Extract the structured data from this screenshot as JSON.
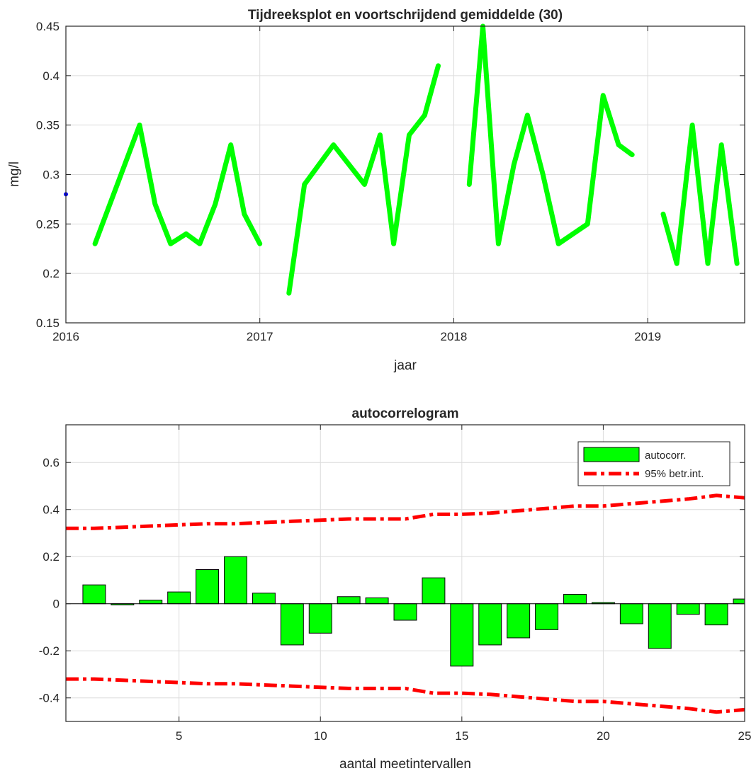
{
  "chart_data": [
    {
      "type": "line",
      "title": "Tijdreeksplot en voortschrijdend gemiddelde (30)",
      "xlabel": "jaar",
      "ylabel": "mg/l",
      "xticks": [
        "2016",
        "2017",
        "2018",
        "2019"
      ],
      "yticks": [
        "0.15",
        "0.2",
        "0.25",
        "0.3",
        "0.35",
        "0.4",
        "0.45"
      ],
      "xlim": [
        2016.0,
        2019.5
      ],
      "ylim": [
        0.15,
        0.45
      ],
      "grid": true,
      "colors": {
        "line": "#00ff00",
        "points": "#0000ff"
      },
      "series": [
        {
          "segments": [
            [
              [
                2016.0,
                0.28
              ]
            ],
            [
              [
                2016.15,
                0.23
              ],
              [
                2016.38,
                0.35
              ],
              [
                2016.46,
                0.27
              ],
              [
                2016.54,
                0.23
              ],
              [
                2016.62,
                0.24
              ],
              [
                2016.69,
                0.23
              ],
              [
                2016.77,
                0.27
              ],
              [
                2016.85,
                0.33
              ],
              [
                2016.92,
                0.26
              ],
              [
                2017.0,
                0.23
              ]
            ],
            [
              [
                2017.15,
                0.18
              ],
              [
                2017.23,
                0.29
              ],
              [
                2017.38,
                0.33
              ],
              [
                2017.54,
                0.29
              ],
              [
                2017.62,
                0.34
              ],
              [
                2017.69,
                0.23
              ],
              [
                2017.77,
                0.34
              ],
              [
                2017.85,
                0.36
              ],
              [
                2017.92,
                0.41
              ]
            ],
            [
              [
                2018.08,
                0.29
              ],
              [
                2018.15,
                0.45
              ],
              [
                2018.23,
                0.23
              ],
              [
                2018.31,
                0.31
              ],
              [
                2018.38,
                0.36
              ],
              [
                2018.46,
                0.3
              ],
              [
                2018.54,
                0.23
              ],
              [
                2018.69,
                0.25
              ],
              [
                2018.77,
                0.38
              ],
              [
                2018.85,
                0.33
              ],
              [
                2018.92,
                0.32
              ]
            ],
            [
              [
                2019.08,
                0.26
              ],
              [
                2019.15,
                0.21
              ],
              [
                2019.23,
                0.35
              ],
              [
                2019.31,
                0.21
              ],
              [
                2019.38,
                0.33
              ],
              [
                2019.46,
                0.21
              ]
            ]
          ]
        }
      ]
    },
    {
      "type": "bar",
      "title": "autocorrelogram",
      "xlabel": "aantal meetintervallen",
      "ylabel": "",
      "xticks": [
        "5",
        "10",
        "15",
        "20",
        "25"
      ],
      "yticks": [
        "-0.4",
        "-0.2",
        "0",
        "0.2",
        "0.4",
        "0.6"
      ],
      "xlim": [
        1,
        25
      ],
      "ylim": [
        -0.5,
        0.76
      ],
      "grid": true,
      "legend_position": "top-right",
      "colors": {
        "bars": "#00ff00",
        "bar_edge": "#000000",
        "interval": "#ff0000"
      },
      "lags": [
        1,
        2,
        3,
        4,
        5,
        6,
        7,
        8,
        9,
        10,
        11,
        12,
        13,
        14,
        15,
        16,
        17,
        18,
        19,
        20,
        21,
        22,
        23,
        24,
        25
      ],
      "series": [
        {
          "name": "autocorr.",
          "values": [
            0.0,
            0.08,
            -0.005,
            0.015,
            0.05,
            0.145,
            0.2,
            0.045,
            -0.175,
            -0.125,
            0.03,
            0.025,
            -0.07,
            0.11,
            -0.265,
            -0.175,
            -0.145,
            -0.11,
            0.04,
            0.005,
            -0.085,
            -0.19,
            -0.045,
            -0.09,
            0.02
          ]
        },
        {
          "name": "95% betr.int.",
          "upper": [
            0.32,
            0.32,
            0.325,
            0.33,
            0.335,
            0.34,
            0.34,
            0.345,
            0.35,
            0.355,
            0.36,
            0.36,
            0.36,
            0.38,
            0.38,
            0.385,
            0.395,
            0.405,
            0.415,
            0.415,
            0.425,
            0.435,
            0.445,
            0.46,
            0.45
          ],
          "lower": [
            -0.32,
            -0.32,
            -0.325,
            -0.33,
            -0.335,
            -0.34,
            -0.34,
            -0.345,
            -0.35,
            -0.355,
            -0.36,
            -0.36,
            -0.36,
            -0.38,
            -0.38,
            -0.385,
            -0.395,
            -0.405,
            -0.415,
            -0.415,
            -0.425,
            -0.435,
            -0.445,
            -0.46,
            -0.45
          ]
        }
      ]
    }
  ]
}
